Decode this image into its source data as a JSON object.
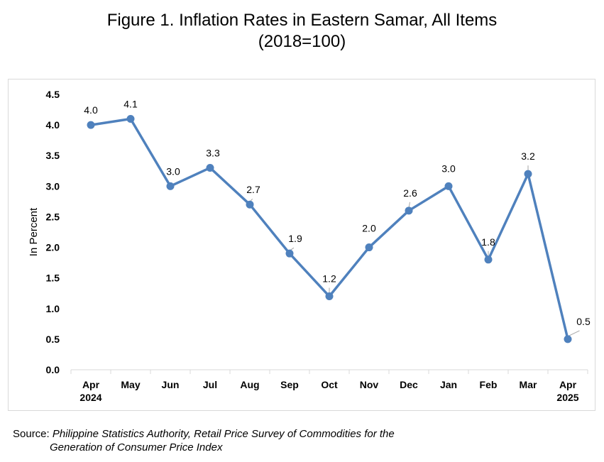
{
  "chart_data": {
    "type": "line",
    "title": "Figure 1. Inflation Rates in Eastern Samar, All Items",
    "subtitle": "(2018=100)",
    "xlabel": "",
    "ylabel": "In Percent",
    "categories": [
      {
        "month": "Apr",
        "year": "2024"
      },
      {
        "month": "May",
        "year": ""
      },
      {
        "month": "Jun",
        "year": ""
      },
      {
        "month": "Jul",
        "year": ""
      },
      {
        "month": "Aug",
        "year": ""
      },
      {
        "month": "Sep",
        "year": ""
      },
      {
        "month": "Oct",
        "year": ""
      },
      {
        "month": "Nov",
        "year": ""
      },
      {
        "month": "Dec",
        "year": ""
      },
      {
        "month": "Jan",
        "year": ""
      },
      {
        "month": "Feb",
        "year": ""
      },
      {
        "month": "Mar",
        "year": ""
      },
      {
        "month": "Apr",
        "year": "2025"
      }
    ],
    "values": [
      4.0,
      4.1,
      3.0,
      3.3,
      2.7,
      1.9,
      1.2,
      2.0,
      2.6,
      3.0,
      1.8,
      3.2,
      0.5
    ],
    "data_labels": [
      "4.0",
      "4.1",
      "3.0",
      "3.3",
      "2.7",
      "1.9",
      "1.2",
      "2.0",
      "2.6",
      "3.0",
      "1.8",
      "3.2",
      "0.5"
    ],
    "ylim": [
      0,
      4.5
    ],
    "y_ticks": [
      "0.0",
      "0.5",
      "1.0",
      "1.5",
      "2.0",
      "2.5",
      "3.0",
      "3.5",
      "4.0",
      "4.5"
    ],
    "grid": false,
    "legend": "none",
    "series_color": "#4f81bd",
    "leader_color": "#a6a6a6",
    "axis_color": "#d9d9d9"
  },
  "source": {
    "label": "Source: ",
    "text_line1": "Philippine Statistics Authority, Retail Price Survey of Commodities for the",
    "text_line2": "Generation of Consumer Price Index"
  }
}
